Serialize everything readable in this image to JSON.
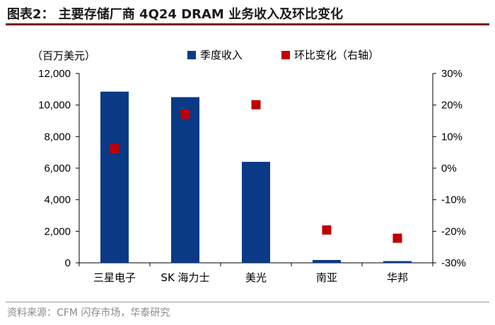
{
  "header": {
    "title": "图表2：  主要存储厂商 4Q24 DRAM 业务收入及环比变化"
  },
  "footer": {
    "source": "资料来源：CFM 闪存市场，华泰研究"
  },
  "colors": {
    "bar": "#0a3a85",
    "marker": "#c00000"
  },
  "chart_data": {
    "type": "bar",
    "left_unit_label": "（百万美元）",
    "categories": [
      "三星电子",
      "SK 海力士",
      "美光",
      "南亚",
      "华邦"
    ],
    "series": [
      {
        "name": "季度收入",
        "type": "bar",
        "axis": "left",
        "values": [
          10850,
          10500,
          6400,
          180,
          110
        ]
      },
      {
        "name": "环比变化（右轴）",
        "type": "scatter",
        "axis": "right",
        "values": [
          6.2,
          17.1,
          20.1,
          -19.6,
          -22.2
        ]
      }
    ],
    "y_left": {
      "range": [
        0,
        12000
      ],
      "ticks": [
        0,
        2000,
        4000,
        6000,
        8000,
        10000,
        12000
      ],
      "tick_labels": [
        "0",
        "2,000",
        "4,000",
        "6,000",
        "8,000",
        "10,000",
        "12,000"
      ]
    },
    "y_right": {
      "range": [
        -30,
        30
      ],
      "ticks": [
        -30,
        -20,
        -10,
        0,
        10,
        20,
        30
      ],
      "tick_labels": [
        "-30%",
        "-20%",
        "-10%",
        "0%",
        "10%",
        "20%",
        "30%"
      ]
    },
    "grid": false,
    "legend_position": "top"
  }
}
